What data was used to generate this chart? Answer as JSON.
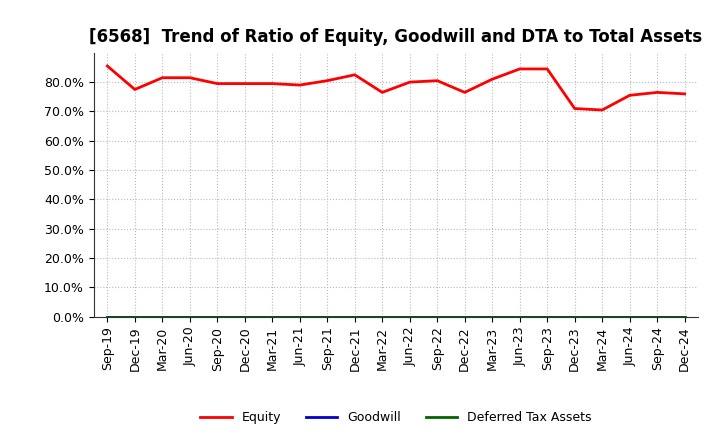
{
  "title": "[6568]  Trend of Ratio of Equity, Goodwill and DTA to Total Assets",
  "x_labels": [
    "Sep-19",
    "Dec-19",
    "Mar-20",
    "Jun-20",
    "Sep-20",
    "Dec-20",
    "Mar-21",
    "Jun-21",
    "Sep-21",
    "Dec-21",
    "Mar-22",
    "Jun-22",
    "Sep-22",
    "Dec-22",
    "Mar-23",
    "Jun-23",
    "Sep-23",
    "Dec-23",
    "Mar-24",
    "Jun-24",
    "Sep-24",
    "Dec-24"
  ],
  "equity": [
    85.5,
    77.5,
    81.5,
    81.5,
    79.5,
    79.5,
    79.5,
    79.0,
    80.5,
    82.5,
    76.5,
    80.0,
    80.5,
    76.5,
    81.0,
    84.5,
    84.5,
    71.0,
    70.5,
    75.5,
    76.5,
    76.0
  ],
  "goodwill": [
    0.0,
    0.0,
    0.0,
    0.0,
    0.0,
    0.0,
    0.0,
    0.0,
    0.0,
    0.0,
    0.0,
    0.0,
    0.0,
    0.0,
    0.0,
    0.0,
    0.0,
    0.0,
    0.0,
    0.0,
    0.0,
    0.0
  ],
  "dta": [
    0.0,
    0.0,
    0.0,
    0.0,
    0.0,
    0.0,
    0.0,
    0.0,
    0.0,
    0.0,
    0.0,
    0.0,
    0.0,
    0.0,
    0.0,
    0.0,
    0.0,
    0.0,
    0.0,
    0.0,
    0.0,
    0.0
  ],
  "equity_color": "#ff0000",
  "goodwill_color": "#0000cd",
  "dta_color": "#006400",
  "ylim_min": 0,
  "ylim_max": 90,
  "yticks": [
    0,
    10,
    20,
    30,
    40,
    50,
    60,
    70,
    80
  ],
  "background_color": "#ffffff",
  "plot_bg_color": "#ffffff",
  "grid_color": "#bbbbbb",
  "title_fontsize": 12,
  "tick_fontsize": 9,
  "legend_labels": [
    "Equity",
    "Goodwill",
    "Deferred Tax Assets"
  ],
  "legend_colors": [
    "#ff0000",
    "#0000cd",
    "#006400"
  ]
}
